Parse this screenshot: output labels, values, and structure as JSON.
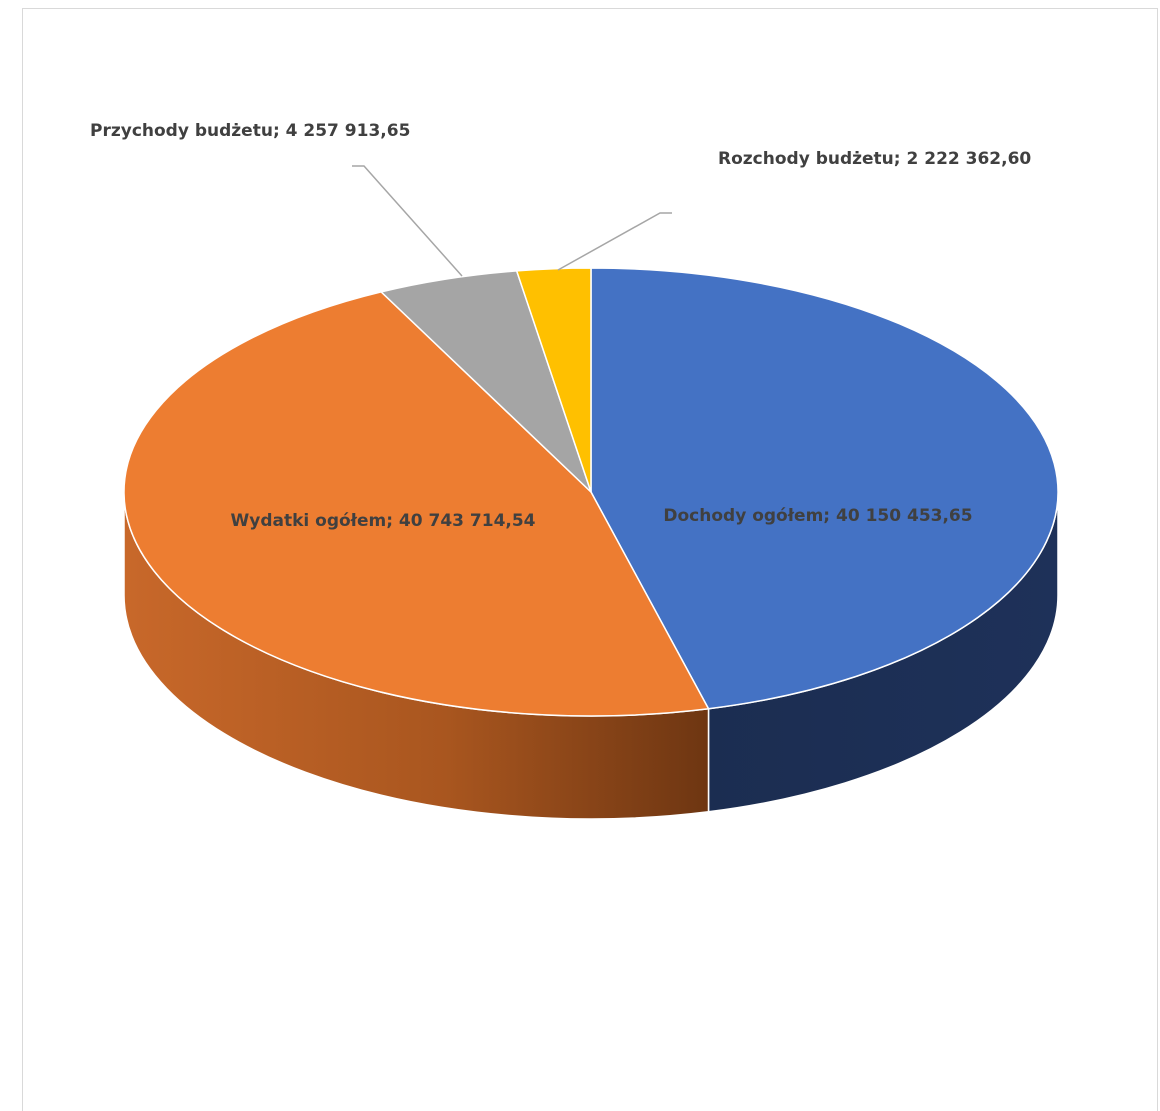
{
  "chart_data": {
    "type": "pie",
    "style": "3d",
    "title": "",
    "slices": [
      {
        "label": "Dochody ogółem; 40 150 453,65",
        "value": 40150453.65,
        "color": "#4472C4",
        "side_color": "#1C2E52"
      },
      {
        "label": "Wydatki ogółem; 40 743 714,54",
        "value": 40743714.54,
        "color": "#ED7D31",
        "side_color": "#B9622A"
      },
      {
        "label": "Przychody budżetu; 4 257 913,65",
        "value": 4257913.65,
        "color": "#A5A5A5",
        "side_color": "#6E6E6E"
      },
      {
        "label": "Rozchody budżetu; 2 222 362,60",
        "value": 2222362.6,
        "color": "#FFC000",
        "side_color": "#A07800"
      }
    ],
    "legend": "none",
    "data_labels": "category; value"
  }
}
